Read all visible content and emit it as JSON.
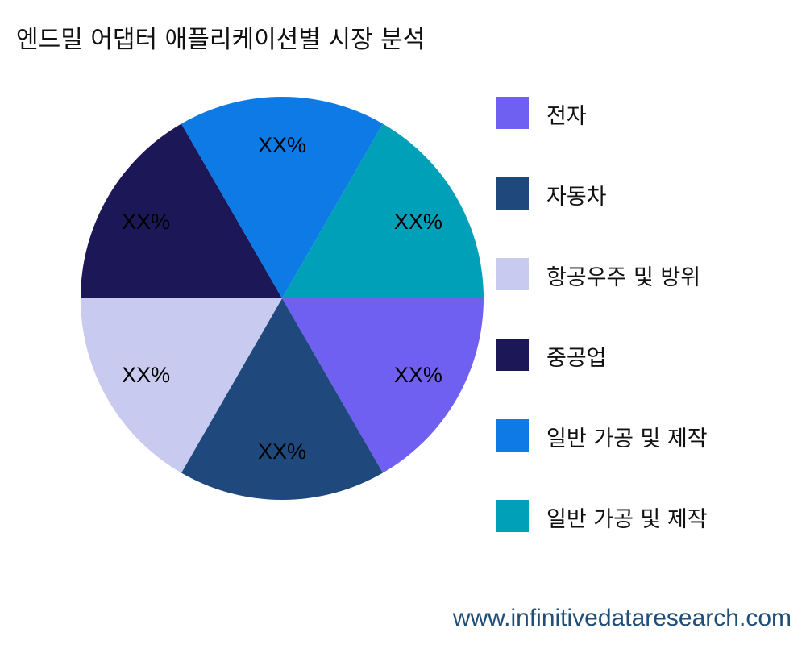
{
  "chart_data": {
    "type": "pie",
    "title": "엔드밀 어댑터 애플리케이션별 시장 분석",
    "categories": [
      "전자",
      "자동차",
      "항공우주 및 방위",
      "중공업",
      "일반 가공 및 제작",
      "일반 가공 및 제작"
    ],
    "values": [
      1,
      1,
      1,
      1,
      1,
      1
    ],
    "data_labels": [
      "XX%",
      "XX%",
      "XX%",
      "XX%",
      "XX%",
      "XX%"
    ],
    "colors": [
      "#7060f2",
      "#1f497d",
      "#c9caf0",
      "#1c1756",
      "#0d7ae6",
      "#00a0b8"
    ],
    "legend_position": "right"
  },
  "watermark": "www.infinitivedataresearch.com"
}
